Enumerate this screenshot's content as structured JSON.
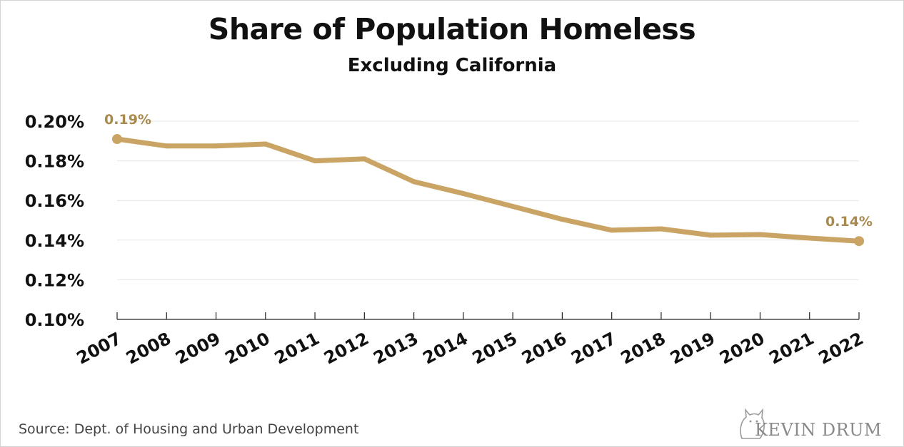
{
  "chart_data": {
    "type": "line",
    "title": "Share of Population Homeless",
    "subtitle": "Excluding California",
    "x": [
      "2007",
      "2008",
      "2009",
      "2010",
      "2011",
      "2012",
      "2013",
      "2014",
      "2015",
      "2016",
      "2017",
      "2018",
      "2019",
      "2020",
      "2021",
      "2022"
    ],
    "series": [
      {
        "values": [
          0.191,
          0.1875,
          0.1875,
          0.1885,
          0.18,
          0.181,
          0.1695,
          0.1635,
          0.157,
          0.1505,
          0.145,
          0.1457,
          0.1425,
          0.1428,
          0.141,
          0.1395
        ],
        "color": "#c9a464"
      }
    ],
    "ylim": [
      0.1,
      0.2
    ],
    "yticks": [
      {
        "value": 0.2,
        "label": "0.20%"
      },
      {
        "value": 0.18,
        "label": "0.18%"
      },
      {
        "value": 0.16,
        "label": "0.16%"
      },
      {
        "value": 0.14,
        "label": "0.14%"
      },
      {
        "value": 0.12,
        "label": "0.12%"
      },
      {
        "value": 0.1,
        "label": "0.10%"
      }
    ],
    "annotations": [
      {
        "index": 0,
        "label": "0.19%"
      },
      {
        "index": 15,
        "label": "0.14%"
      }
    ],
    "label_color": "#a88a4f",
    "grid": true
  },
  "footer": {
    "source": "Source: Dept. of Housing and Urban Development",
    "logo": "KEVIN DRUM"
  }
}
